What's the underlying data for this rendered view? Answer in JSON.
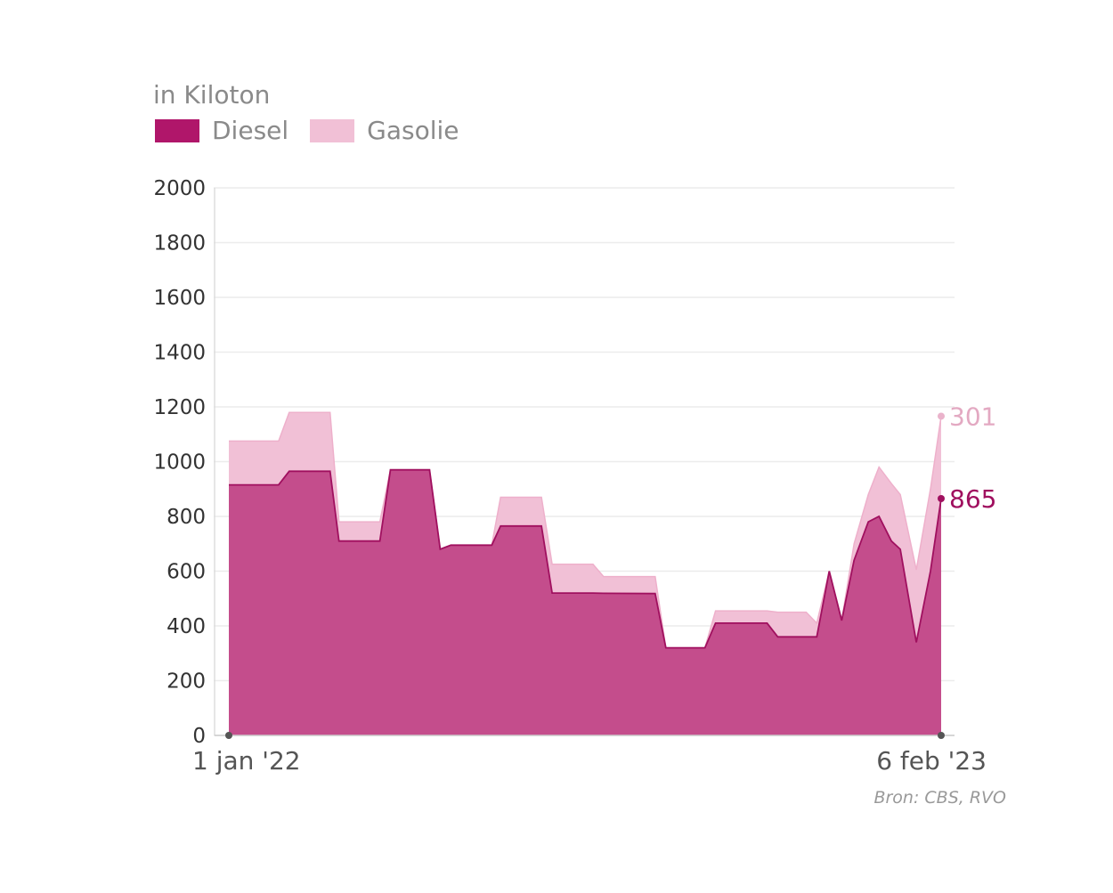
{
  "chart_data": {
    "type": "area",
    "stacked": true,
    "unit_label": "in Kiloton",
    "source": "Bron: CBS, RVO",
    "x_unit": "days since 1 jan '22",
    "x_tick_labels": [
      "1 jan '22",
      "6 feb '23"
    ],
    "xlim": [
      0,
      401
    ],
    "ylim": [
      0,
      2000
    ],
    "y_ticks": [
      0,
      200,
      400,
      600,
      800,
      1000,
      1200,
      1400,
      1600,
      1800,
      2000
    ],
    "grid": true,
    "x": [
      0,
      28,
      34,
      57,
      62,
      85,
      91,
      113,
      119,
      125,
      148,
      153,
      176,
      182,
      205,
      211,
      240,
      246,
      268,
      274,
      303,
      309,
      325,
      331,
      338,
      345,
      352,
      360,
      366,
      373,
      378,
      387,
      395,
      401
    ],
    "series": [
      {
        "name": "Diesel",
        "color": "#b0166a",
        "fill": "#c44d8c",
        "values": [
          915,
          915,
          965,
          965,
          710,
          710,
          970,
          970,
          680,
          695,
          695,
          765,
          765,
          520,
          520,
          519,
          518,
          320,
          320,
          410,
          410,
          360,
          360,
          360,
          600,
          420,
          640,
          780,
          800,
          710,
          680,
          340,
          600,
          865
        ],
        "end_label": "865"
      },
      {
        "name": "Gasolie",
        "color": "#f0bcd4",
        "fill": "#f1c0d6",
        "values": [
          160,
          160,
          215,
          215,
          70,
          70,
          0,
          0,
          0,
          0,
          0,
          105,
          105,
          105,
          105,
          61,
          62,
          0,
          0,
          45,
          45,
          90,
          90,
          50,
          0,
          0,
          60,
          100,
          180,
          210,
          200,
          265,
          300,
          301
        ],
        "end_label": "301"
      }
    ]
  }
}
